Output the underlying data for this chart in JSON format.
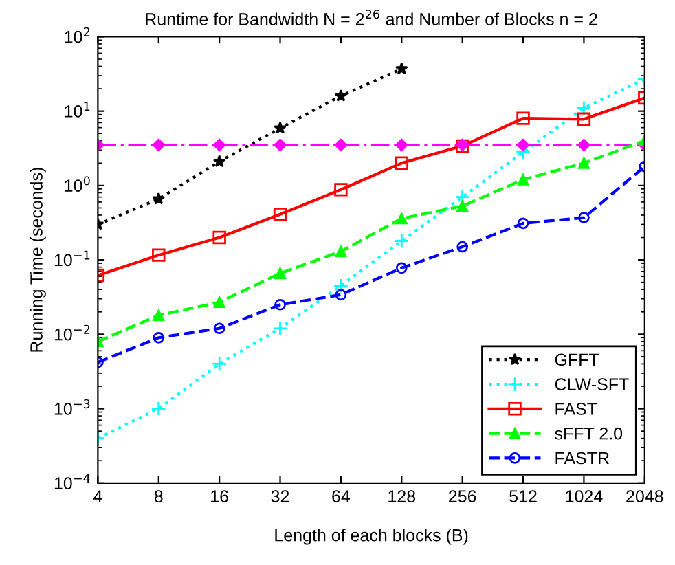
{
  "chart_data": {
    "type": "line",
    "title": "Runtime for Bandwidth N = 2$^{26}$ and Number of Blocks n = 2",
    "xlabel": "Length of each blocks (B)",
    "ylabel": "Running Time (seconds)",
    "x": [
      4,
      8,
      16,
      32,
      64,
      128,
      256,
      512,
      1024,
      2048
    ],
    "log": "xy",
    "xlim": [
      4,
      2048
    ],
    "xticks": [
      4,
      8,
      16,
      32,
      64,
      128,
      256,
      512,
      1024,
      2048
    ],
    "ylim": [
      0.0001,
      100
    ],
    "yticks": [
      {
        "value": 0.0001,
        "label": "10$^{−4}$"
      },
      {
        "value": 0.001,
        "label": "10$^{−3}$"
      },
      {
        "value": 0.01,
        "label": "10$^{−2}$"
      },
      {
        "value": 0.1,
        "label": "10$^{−1}$"
      },
      {
        "value": 1,
        "label": "10$^{0}$"
      },
      {
        "value": 10,
        "label": "10$^{1}$"
      },
      {
        "value": 100,
        "label": "10$^{2}$"
      }
    ],
    "grid": false,
    "legend": "bottom right",
    "series": [
      {
        "name": "GFFT",
        "color": "#000000",
        "marker": "star",
        "line_style": "dotted",
        "values": [
          0.3,
          0.66,
          2.1,
          5.9,
          16,
          37,
          null,
          null,
          null,
          null
        ]
      },
      {
        "name": "CLW-SFT",
        "color": "#00ffff",
        "marker": "cross",
        "line_style": "dotted",
        "values": [
          0.0004,
          0.001,
          0.004,
          0.012,
          0.045,
          0.18,
          0.7,
          2.8,
          11,
          27
        ]
      },
      {
        "name": "FAST",
        "color": "#ff0000",
        "marker": "square",
        "line_style": "solid",
        "values": [
          0.062,
          0.116,
          0.2,
          0.41,
          0.88,
          2.0,
          3.4,
          8.0,
          7.8,
          15
        ]
      },
      {
        "color": "#ff00ff",
        "marker": "diamond",
        "line_style": "dashdot",
        "values": [
          3.5,
          3.5,
          3.5,
          3.5,
          3.5,
          3.5,
          3.5,
          3.5,
          3.5,
          3.5
        ]
      },
      {
        "name": "sFFT 2.0",
        "color": "#00ff00",
        "marker": "triangle",
        "line_style": "dashed",
        "values": [
          0.008,
          0.018,
          0.027,
          0.066,
          0.13,
          0.36,
          0.53,
          1.2,
          2.0,
          4.0
        ]
      },
      {
        "name": "FASTR",
        "color": "#0000ff",
        "marker": "circle",
        "line_style": "dashed",
        "values": [
          0.0042,
          0.009,
          0.012,
          0.025,
          0.034,
          0.078,
          0.15,
          0.31,
          0.37,
          1.8
        ]
      }
    ]
  }
}
